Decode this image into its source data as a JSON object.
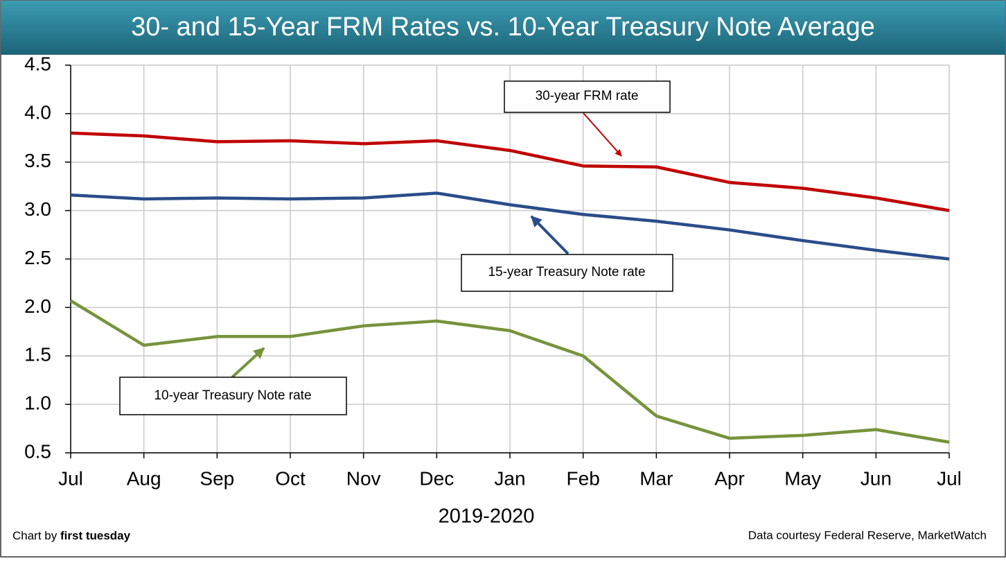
{
  "chart_data": {
    "type": "line",
    "title": "30- and 15-Year FRM Rates vs. 10-Year Treasury Note Average",
    "x_label": "2019-2020",
    "categories": [
      "Jul",
      "Aug",
      "Sep",
      "Oct",
      "Nov",
      "Dec",
      "Jan",
      "Feb",
      "Mar",
      "Apr",
      "May",
      "Jun",
      "Jul"
    ],
    "series": [
      {
        "name": "30-year FRM rate",
        "color": "#c00000",
        "values": [
          3.8,
          3.77,
          3.71,
          3.72,
          3.69,
          3.72,
          3.62,
          3.46,
          3.45,
          3.29,
          3.23,
          3.13,
          3.0
        ]
      },
      {
        "name": "15-year Treasury Note rate",
        "color": "#2a4d8a",
        "values": [
          3.16,
          3.12,
          3.13,
          3.12,
          3.13,
          3.18,
          3.06,
          2.96,
          2.89,
          2.8,
          2.69,
          2.59,
          2.5
        ]
      },
      {
        "name": "10-year Treasury Note rate",
        "color": "#77933c",
        "values": [
          2.07,
          1.61,
          1.7,
          1.7,
          1.81,
          1.86,
          1.76,
          1.5,
          0.88,
          0.65,
          0.68,
          0.74,
          0.61
        ]
      }
    ],
    "ylim": [
      0.5,
      4.5
    ],
    "yticks": [
      0.5,
      {
        "value": 1,
        "label": "1.0"
      },
      1.5,
      {
        "value": 2,
        "label": "2.0"
      },
      2.5,
      {
        "value": 3,
        "label": "3.0"
      },
      3.5,
      {
        "value": 4,
        "label": "4.0"
      },
      4.5
    ],
    "grid": true,
    "credit_prefix": "Chart by",
    "credit_name": "first tuesday",
    "source": "Data courtesy Federal Reserve, MarketWatch"
  }
}
